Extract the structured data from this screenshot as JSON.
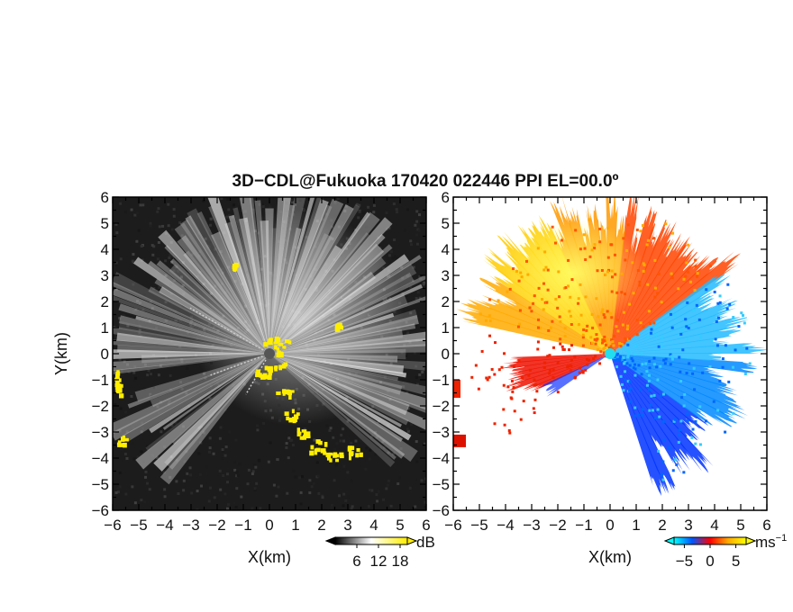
{
  "title": "3D−CDL@Fukuoka 170420 022446 PPI EL=00.0º",
  "chart_data": [
    {
      "type": "heatmap",
      "panel": "reflectivity",
      "xlabel": "X(km)",
      "ylabel": "Y(km)",
      "xlim": [
        -6,
        6
      ],
      "ylim": [
        -6,
        6
      ],
      "xticks": [
        "−6",
        "−5",
        "−4",
        "−3",
        "−2",
        "−1",
        "0",
        "1",
        "2",
        "3",
        "4",
        "5",
        "6"
      ],
      "yticks": [
        "−6",
        "−5",
        "−4",
        "−3",
        "−2",
        "−1",
        "0",
        "1",
        "2",
        "3",
        "4",
        "5",
        "6"
      ],
      "colorbar": {
        "unit": "dB",
        "ticks": [
          "6",
          "12",
          "18"
        ],
        "tick_values": [
          6,
          12,
          18
        ],
        "range": [
          0,
          20
        ],
        "colors": [
          "#000000",
          "#ffffff",
          "#ffee00"
        ]
      }
    },
    {
      "type": "heatmap",
      "panel": "doppler-velocity",
      "xlabel": "X(km)",
      "xlim": [
        -6,
        6
      ],
      "ylim": [
        -6,
        6
      ],
      "xticks": [
        "−6",
        "−5",
        "−4",
        "−3",
        "−2",
        "−1",
        "0",
        "1",
        "2",
        "3",
        "4",
        "5",
        "6"
      ],
      "yticks": [
        "−6",
        "−5",
        "−4",
        "−3",
        "−2",
        "−1",
        "0",
        "1",
        "2",
        "3",
        "4",
        "5",
        "6"
      ],
      "colorbar": {
        "unit": "ms",
        "unit_exp": "−1",
        "ticks": [
          "−5",
          "0",
          "5"
        ],
        "tick_values": [
          -5,
          0,
          5
        ],
        "range": [
          -7,
          7
        ],
        "colors": [
          "#00ffff",
          "#0055ff",
          "#ff0000",
          "#ffaa00",
          "#ffff00"
        ]
      }
    }
  ]
}
